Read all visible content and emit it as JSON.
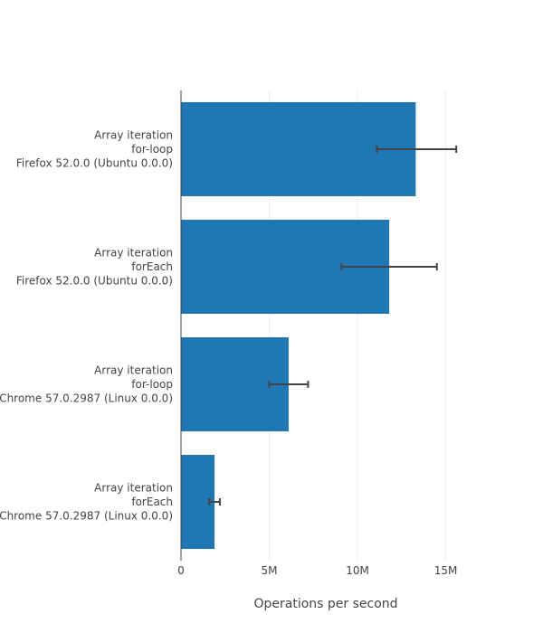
{
  "chart_data": {
    "type": "bar",
    "orientation": "horizontal",
    "xlabel": "Operations per second",
    "xlim": [
      0,
      20000000
    ],
    "xticks": [
      0,
      5000000,
      10000000,
      15000000
    ],
    "xtick_labels": [
      "0",
      "5M",
      "10M",
      "15M"
    ],
    "grid": true,
    "bar_color": "#1f77b4",
    "error_color": "#444444",
    "categories": [
      {
        "lines": [
          "Array iteration",
          "for-loop",
          "Firefox 52.0.0 (Ubuntu 0.0.0)"
        ]
      },
      {
        "lines": [
          "Array iteration",
          "forEach",
          "Firefox 52.0.0 (Ubuntu 0.0.0)"
        ]
      },
      {
        "lines": [
          "Array iteration",
          "for-loop",
          "Chrome 57.0.2987 (Linux 0.0.0)"
        ]
      },
      {
        "lines": [
          "Array iteration",
          "forEach",
          "Chrome 57.0.2987 (Linux 0.0.0)"
        ]
      }
    ],
    "values": [
      13300000,
      11800000,
      6100000,
      1900000
    ],
    "error_low": [
      11100000,
      9100000,
      5000000,
      1600000
    ],
    "error_high": [
      15600000,
      14500000,
      7200000,
      2200000
    ]
  }
}
